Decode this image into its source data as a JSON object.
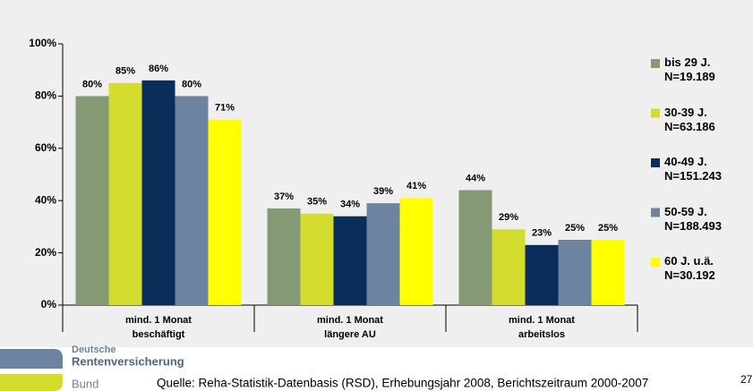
{
  "chart_data": {
    "type": "bar",
    "categories": [
      "mind. 1 Monat\nbeschäftigt",
      "mind. 1 Monat\nlängere AU",
      "mind. 1 Monat\narbeitslos"
    ],
    "series": [
      {
        "name": "bis 29 J.\nN=19.189",
        "color": "#859a74",
        "values": [
          80,
          37,
          44
        ],
        "value_labels": [
          "80%",
          "37%",
          "44%"
        ]
      },
      {
        "name": "30-39 J.\nN=63.186",
        "color": "#d4dc2e",
        "values": [
          85,
          35,
          29
        ],
        "value_labels": [
          "85%",
          "35%",
          "29%"
        ]
      },
      {
        "name": "40-49 J.\nN=151.243",
        "color": "#0b2d5a",
        "values": [
          86,
          34,
          23
        ],
        "value_labels": [
          "86%",
          "34%",
          "23%"
        ]
      },
      {
        "name": "50-59 J.\nN=188.493",
        "color": "#6d84a0",
        "values": [
          80,
          39,
          25
        ],
        "value_labels": [
          "80%",
          "39%",
          "25%"
        ]
      },
      {
        "name": "60 J. u.ä.\nN=30.192",
        "color": "#ffff00",
        "values": [
          71,
          41,
          25
        ],
        "value_labels": [
          "71%",
          "41%",
          "25%"
        ]
      }
    ],
    "ylim": [
      0,
      100
    ],
    "yticks": [
      {
        "value": 0,
        "label": "0%"
      },
      {
        "value": 20,
        "label": "20%"
      },
      {
        "value": 40,
        "label": "40%"
      },
      {
        "value": 60,
        "label": "60%"
      },
      {
        "value": 80,
        "label": "80%"
      },
      {
        "value": 100,
        "label": "100%"
      }
    ],
    "grid": false,
    "legend": "right"
  },
  "footer": {
    "logo_line1": "Deutsche",
    "logo_line2": "Rentenversicherung",
    "logo_line3": "Bund",
    "source": "Quelle: Reha-Statistik-Datenbasis (RSD), Erhebungsjahr 2008, Berichtszeitraum 2000-2007",
    "page_number": "27"
  }
}
